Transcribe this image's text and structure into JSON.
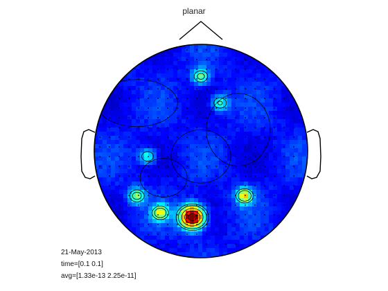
{
  "chart_data": {
    "type": "heatmap",
    "title": "planar",
    "colormap": "jet",
    "contours": true,
    "sensor_markers": true,
    "info": {
      "date": "21-May-2013",
      "time": "time=[0.1 0.1]",
      "avg": "avg=[1.33e-13 2.25e-11]"
    },
    "value_range": [
      1.33e-13,
      2.25e-11
    ],
    "hotspots": [
      {
        "label": "left-occipital peak",
        "u": -0.08,
        "v": 0.62,
        "value": 1.0
      },
      {
        "label": "right-occipital patch",
        "u": 0.41,
        "v": 0.42,
        "value": 0.5
      },
      {
        "label": "left-posterior patch",
        "u": -0.38,
        "v": 0.58,
        "value": 0.45
      },
      {
        "label": "lower-left patch",
        "u": -0.6,
        "v": 0.42,
        "value": 0.38
      },
      {
        "label": "frontal spot",
        "u": 0.0,
        "v": -0.7,
        "value": 0.35
      },
      {
        "label": "central spot",
        "u": 0.18,
        "v": -0.45,
        "value": 0.32
      },
      {
        "label": "left-temporal patch",
        "u": -0.5,
        "v": 0.05,
        "value": 0.3
      }
    ]
  }
}
